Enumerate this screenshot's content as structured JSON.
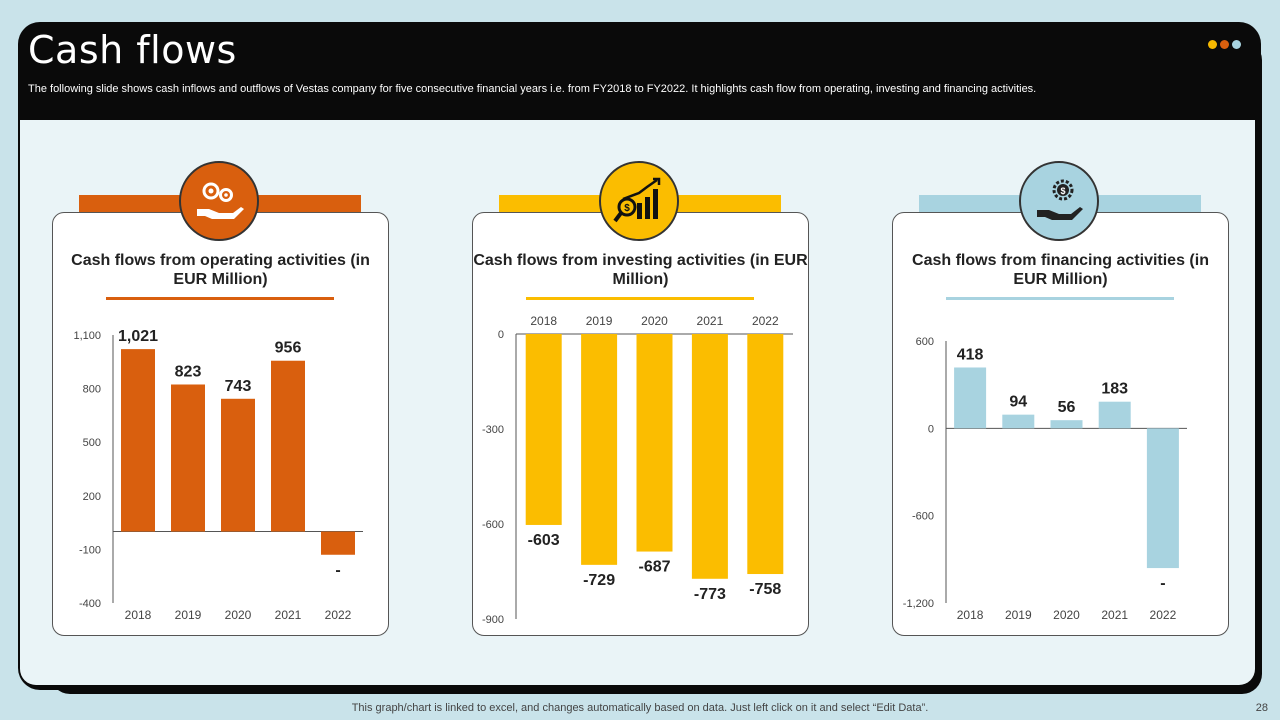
{
  "header": {
    "title": "Cash flows",
    "subtitle": "The following slide shows cash inflows and outflows of Vestas company for five  consecutive financial years i.e. from FY2018 to FY2022.  It highlights cash flow from operating, investing and financing activities.",
    "dot_colors": [
      "#f5b800",
      "#d95f0e",
      "#a8d3e0"
    ]
  },
  "footer": {
    "note": "This graph/chart is linked to excel,  and changes automatically based on data. Just left click on it and select “Edit Data”.",
    "page_number": "28"
  },
  "cards": [
    {
      "title": "Cash flows from operating activities (in EUR Million)",
      "icon": "gears-hand-icon",
      "color": "#d95f0e"
    },
    {
      "title": "Cash flows from investing activities (in EUR Million)",
      "icon": "magnifier-growth-icon",
      "color": "#fbbd00"
    },
    {
      "title": "Cash flows from financing activities (in EUR Million)",
      "icon": "dollar-gear-hand-icon",
      "color": "#a8d3e0"
    }
  ],
  "chart_data": [
    {
      "type": "bar",
      "title": "Cash flows from operating activities (in EUR Million)",
      "categories": [
        "2018",
        "2019",
        "2020",
        "2021",
        "2022"
      ],
      "values": [
        1021,
        823,
        743,
        956,
        -130
      ],
      "value_labels": [
        "1,021",
        "823",
        "743",
        "956",
        "-"
      ],
      "yticks": [
        1100,
        800,
        500,
        200,
        -100,
        -400
      ],
      "ytick_labels": [
        "1,100",
        "800",
        "500",
        "200",
        "-100",
        "-400"
      ],
      "ylim": [
        -400,
        1100
      ],
      "color": "#d95f0e",
      "xaxis_position": "bottom"
    },
    {
      "type": "bar",
      "title": "Cash flows from investing activities (in EUR Million)",
      "categories": [
        "2018",
        "2019",
        "2020",
        "2021",
        "2022"
      ],
      "values": [
        -603,
        -729,
        -687,
        -773,
        -758
      ],
      "value_labels": [
        "-603",
        "-729",
        "-687",
        "-773",
        "-758"
      ],
      "yticks": [
        0,
        -300,
        -600,
        -900
      ],
      "ytick_labels": [
        "0",
        "-300",
        "-600",
        "-900"
      ],
      "ylim": [
        -900,
        0
      ],
      "color": "#fbbd00",
      "xaxis_position": "top"
    },
    {
      "type": "bar",
      "title": "Cash flows from financing activities (in EUR Million)",
      "categories": [
        "2018",
        "2019",
        "2020",
        "2021",
        "2022"
      ],
      "values": [
        418,
        94,
        56,
        183,
        -960
      ],
      "value_labels": [
        "418",
        "94",
        "56",
        "183",
        "-"
      ],
      "yticks": [
        600,
        0,
        -600,
        -1200
      ],
      "ytick_labels": [
        "600",
        "0",
        "-600",
        "-1,200"
      ],
      "ylim": [
        -1200,
        600
      ],
      "color": "#a8d3e0",
      "xaxis_position": "bottom"
    }
  ]
}
